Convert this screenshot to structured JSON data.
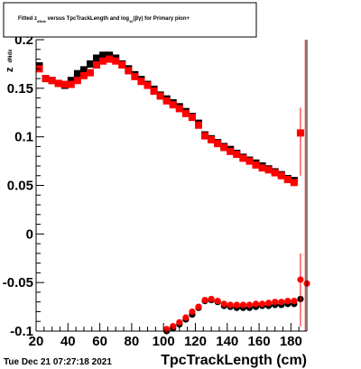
{
  "chart_data": {
    "type": "scatter",
    "title": "Fitted  z_dNdx  versus  TpcTrackLength and log10(βγ) for Primary pion+",
    "title_parts": {
      "prefix": "Fitted  z",
      "sub1": "dNdx",
      "middle": "  versus  TpcTrackLength and log",
      "sub2": "10",
      "suffix": "(βγ) for Primary pion+"
    },
    "xlabel": "TpcTrackLength (cm)",
    "ylabel": "z",
    "ylabel_sub": "dNdx",
    "xlim": [
      20,
      190
    ],
    "ylim": [
      -0.1,
      0.2
    ],
    "x_ticks": [
      20,
      40,
      60,
      80,
      100,
      120,
      140,
      160,
      180
    ],
    "y_ticks": [
      -0.1,
      -0.05,
      0,
      0.05,
      0.1,
      0.15,
      0.2
    ],
    "x_tick_labels": [
      "20",
      "40",
      "60",
      "80",
      "100",
      "120",
      "140",
      "160",
      "180"
    ],
    "y_tick_labels": [
      "-0.1",
      "-0.05",
      "0",
      "0.05",
      "0.1",
      "0.15",
      "0.2"
    ],
    "grid": false,
    "timestamp": "Tue Dec 21 07:27:18 2021",
    "series": [
      {
        "color": "#000000",
        "marker": "square",
        "x": [
          22,
          26,
          30,
          34,
          38,
          42,
          46,
          50,
          54,
          58,
          62,
          66,
          70,
          74,
          78,
          82,
          86,
          90,
          94,
          98,
          102,
          106,
          110,
          114,
          118,
          122,
          126,
          130,
          134,
          138,
          142,
          146,
          150,
          154,
          158,
          162,
          166,
          170,
          174,
          178,
          182
        ],
        "y": [
          0.173,
          0.16,
          0.158,
          0.155,
          0.153,
          0.158,
          0.165,
          0.169,
          0.175,
          0.181,
          0.184,
          0.184,
          0.181,
          0.175,
          0.17,
          0.164,
          0.159,
          0.154,
          0.149,
          0.143,
          0.139,
          0.135,
          0.131,
          0.126,
          0.121,
          0.114,
          0.102,
          0.098,
          0.094,
          0.09,
          0.087,
          0.083,
          0.079,
          0.076,
          0.073,
          0.07,
          0.067,
          0.064,
          0.061,
          0.057,
          0.055
        ]
      },
      {
        "color": "#ff0000",
        "marker": "square",
        "x": [
          22,
          26,
          30,
          34,
          38,
          42,
          46,
          50,
          54,
          58,
          62,
          66,
          70,
          74,
          78,
          82,
          86,
          90,
          94,
          98,
          102,
          106,
          110,
          114,
          118,
          122,
          126,
          130,
          134,
          138,
          142,
          146,
          150,
          154,
          158,
          162,
          166,
          170,
          174,
          178,
          182,
          186
        ],
        "y": [
          0.17,
          0.16,
          0.158,
          0.155,
          0.154,
          0.154,
          0.158,
          0.163,
          0.166,
          0.174,
          0.178,
          0.18,
          0.178,
          0.174,
          0.168,
          0.162,
          0.157,
          0.153,
          0.147,
          0.142,
          0.137,
          0.133,
          0.129,
          0.124,
          0.12,
          0.112,
          0.101,
          0.097,
          0.093,
          0.089,
          0.085,
          0.082,
          0.078,
          0.075,
          0.071,
          0.068,
          0.066,
          0.063,
          0.06,
          0.056,
          0.053,
          0.104
        ],
        "error_bars": [
          {
            "x": 186,
            "low": 0.06,
            "high": 0.13
          },
          {
            "x": 189,
            "low": -0.1,
            "high": 0.2
          }
        ]
      },
      {
        "color": "#000000",
        "marker": "circle",
        "x": [
          102,
          106,
          110,
          114,
          118,
          122,
          126,
          130,
          134,
          138,
          142,
          146,
          150,
          154,
          158,
          162,
          166,
          170,
          174,
          178,
          182,
          186
        ],
        "y": [
          -0.1,
          -0.097,
          -0.093,
          -0.088,
          -0.083,
          -0.076,
          -0.069,
          -0.068,
          -0.07,
          -0.074,
          -0.075,
          -0.076,
          -0.076,
          -0.076,
          -0.075,
          -0.074,
          -0.074,
          -0.073,
          -0.073,
          -0.072,
          -0.072,
          -0.067
        ]
      },
      {
        "color": "#ff0000",
        "marker": "circle",
        "x": [
          102,
          106,
          110,
          114,
          118,
          122,
          126,
          130,
          134,
          138,
          142,
          146,
          150,
          154,
          158,
          162,
          166,
          170,
          174,
          178,
          182,
          186,
          190
        ],
        "y": [
          -0.098,
          -0.095,
          -0.091,
          -0.086,
          -0.08,
          -0.075,
          -0.068,
          -0.067,
          -0.069,
          -0.072,
          -0.073,
          -0.073,
          -0.073,
          -0.073,
          -0.072,
          -0.072,
          -0.071,
          -0.07,
          -0.07,
          -0.069,
          -0.069,
          -0.047,
          -0.051
        ],
        "error_bars": [
          {
            "x": 186,
            "low": -0.095,
            "high": -0.02
          }
        ]
      }
    ]
  }
}
